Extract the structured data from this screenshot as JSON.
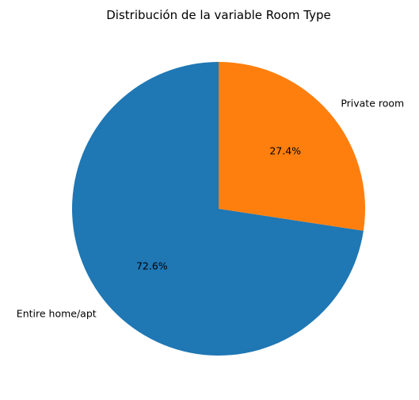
{
  "chart_data": {
    "type": "pie",
    "title": "Distribución de la variable Room Type",
    "slices": [
      {
        "label": "Entire home/apt",
        "value": 72.6,
        "pct_label": "72.6%",
        "color": "#1f77b4"
      },
      {
        "label": "Private room",
        "value": 27.4,
        "pct_label": "27.4%",
        "color": "#ff7f0e"
      }
    ],
    "start_angle_deg": 90,
    "direction": "clockwise",
    "legend": "none"
  }
}
